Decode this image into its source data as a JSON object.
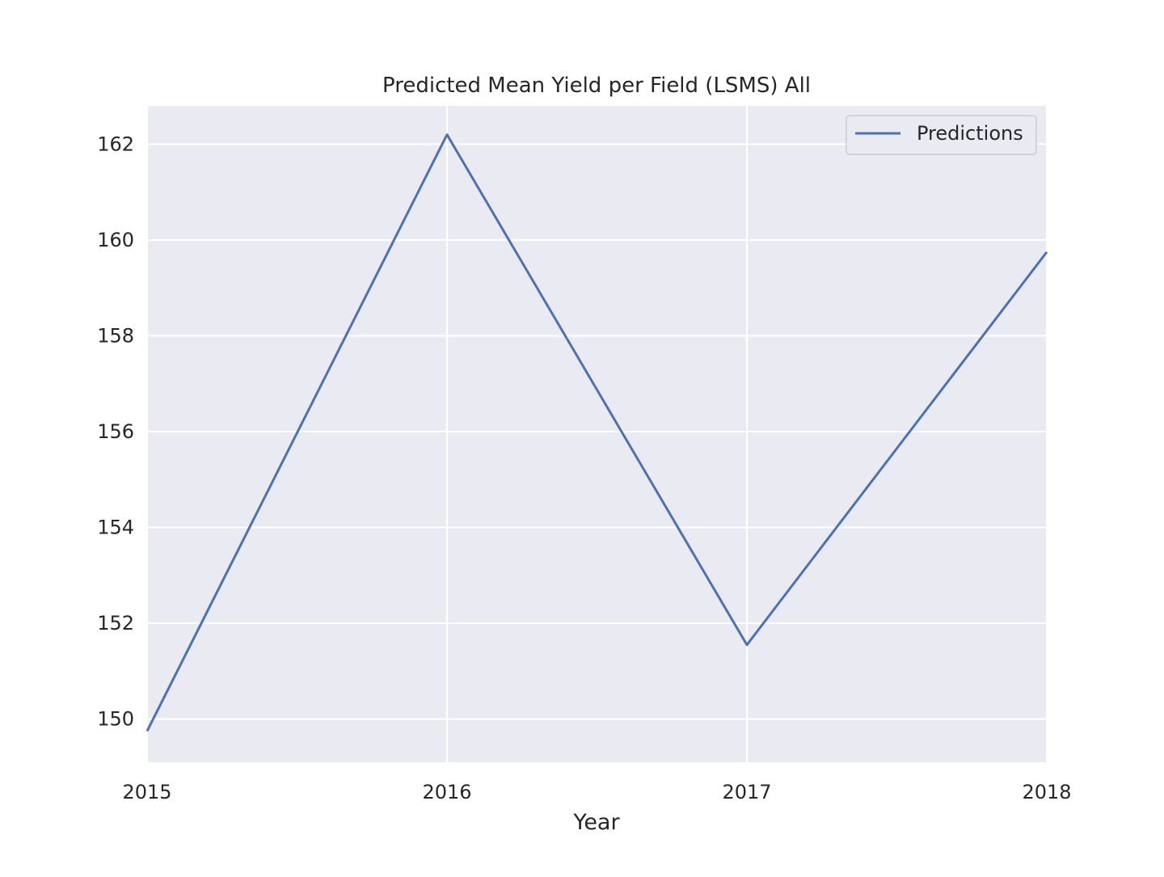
{
  "chart_data": {
    "type": "line",
    "title": "Predicted Mean Yield per Field (LSMS) All",
    "xlabel": "Year",
    "ylabel": "",
    "x": [
      2015,
      2016,
      2017,
      2018
    ],
    "x_tick_labels": [
      "2015",
      "2016",
      "2017",
      "2018"
    ],
    "y_ticks": [
      150,
      152,
      154,
      156,
      158,
      160,
      162
    ],
    "y_tick_labels": [
      "150",
      "152",
      "154",
      "156",
      "158",
      "160",
      "162"
    ],
    "xlim": [
      2015,
      2018
    ],
    "ylim": [
      149.1,
      162.8
    ],
    "grid": true,
    "legend_position": "top-right",
    "series": [
      {
        "name": "Predictions",
        "values": [
          149.75,
          162.2,
          151.55,
          159.75
        ],
        "color": "#4c72b0"
      }
    ],
    "colors": {
      "plot_background": "#eaeaf2",
      "grid": "#ffffff"
    }
  }
}
